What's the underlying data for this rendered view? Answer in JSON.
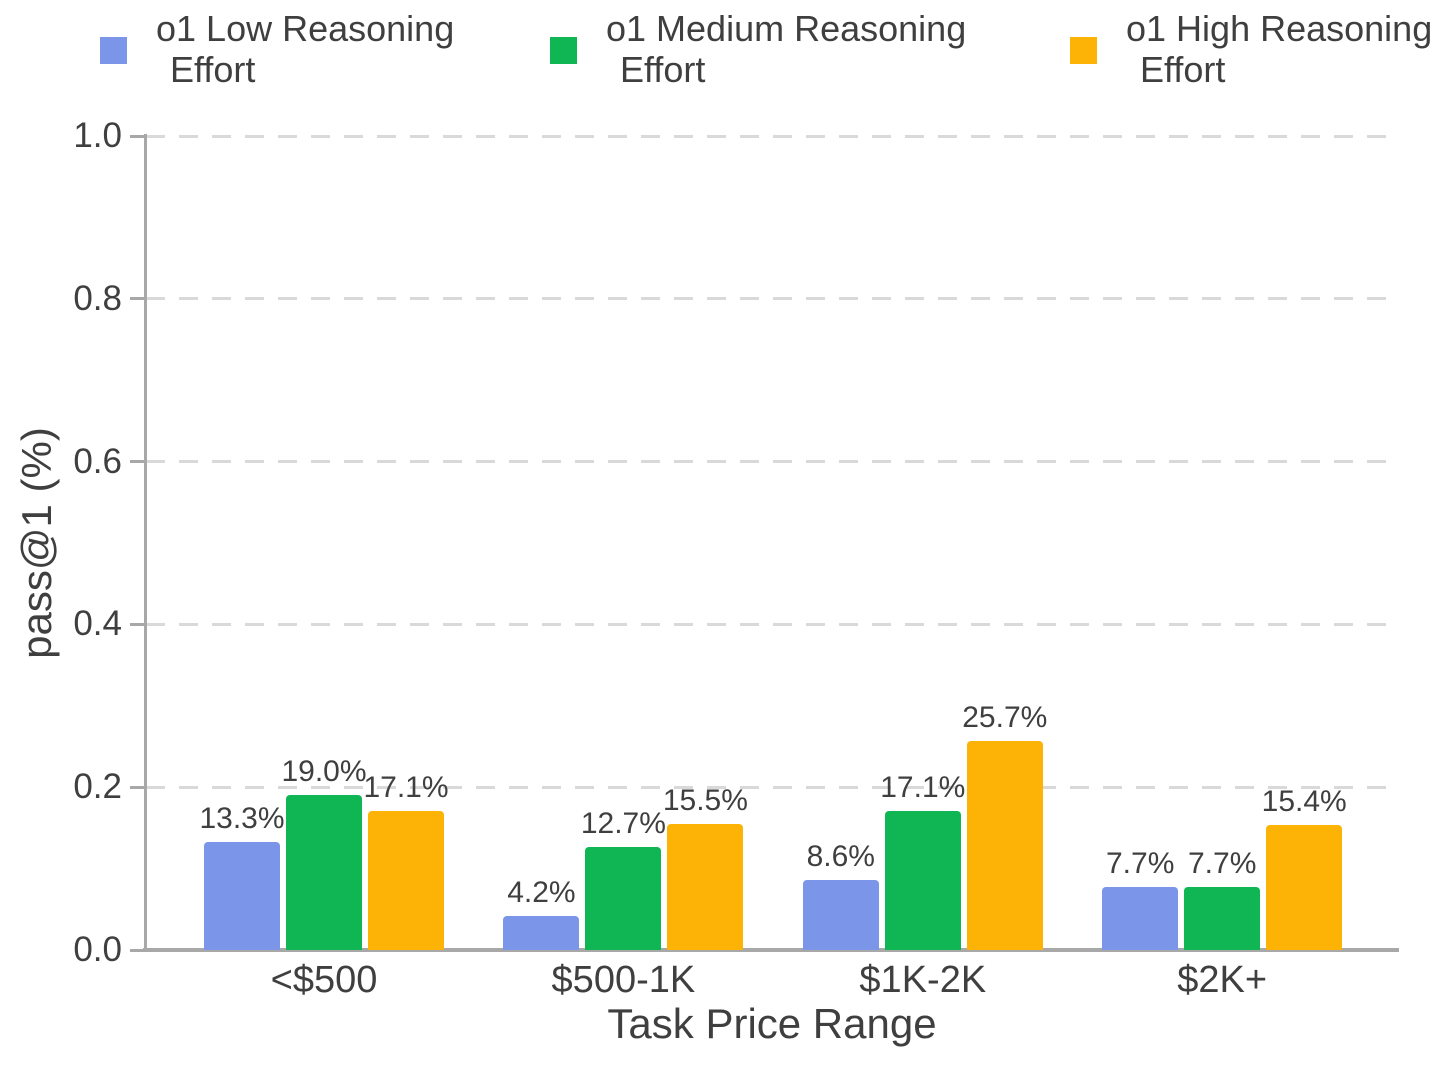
{
  "chart_data": {
    "type": "bar",
    "title": "",
    "xlabel": "Task Price Range",
    "ylabel": "pass@1 (%)",
    "categories": [
      "<$500",
      "$500-1K",
      "$1K-2K",
      "$2K+"
    ],
    "series": [
      {
        "name": "o1 Low Reasoning Effort",
        "legend_lines": [
          "o1 Low Reasoning",
          "Effort"
        ],
        "color": "#7b96e8",
        "values": [
          0.133,
          0.042,
          0.086,
          0.077
        ],
        "value_labels": [
          "13.3%",
          "4.2%",
          "8.6%",
          "7.7%"
        ]
      },
      {
        "name": "o1 Medium Reasoning Effort",
        "legend_lines": [
          "o1 Medium Reasoning",
          "Effort"
        ],
        "color": "#10b554",
        "values": [
          0.19,
          0.127,
          0.171,
          0.077
        ],
        "value_labels": [
          "19.0%",
          "12.7%",
          "17.1%",
          "7.7%"
        ]
      },
      {
        "name": "o1 High Reasoning Effort",
        "legend_lines": [
          "o1 High Reasoning",
          "Effort"
        ],
        "color": "#fcb306",
        "values": [
          0.171,
          0.155,
          0.257,
          0.154
        ],
        "value_labels": [
          "17.1%",
          "15.5%",
          "25.7%",
          "15.4%"
        ]
      }
    ],
    "ylim": [
      0,
      1.0
    ],
    "y_ticks": [
      0.0,
      0.2,
      0.4,
      0.6,
      0.8,
      1.0
    ],
    "y_tick_labels": [
      "0.0",
      "0.2",
      "0.4",
      "0.6",
      "0.8",
      "1.0"
    ],
    "grid": "horizontal-dashed",
    "legend_position": "top"
  },
  "colors": {
    "text": "#3f3f3f",
    "axis": "#a8a8a8",
    "gridline": "#d9d9d9",
    "background": "#ffffff"
  }
}
